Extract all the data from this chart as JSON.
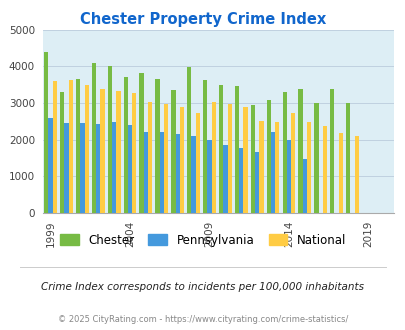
{
  "title": "Chester Property Crime Index",
  "years": [
    1999,
    2000,
    2001,
    2002,
    2003,
    2004,
    2005,
    2006,
    2007,
    2008,
    2009,
    2010,
    2011,
    2012,
    2013,
    2014,
    2015,
    2016,
    2017,
    2018,
    2019,
    2020
  ],
  "chester": [
    4380,
    3300,
    3650,
    4080,
    4020,
    3700,
    3820,
    3660,
    3350,
    3980,
    3620,
    3500,
    3460,
    2950,
    3090,
    3300,
    3380,
    3010,
    3370,
    2990,
    null,
    null
  ],
  "pennsylvania": [
    2580,
    2460,
    2450,
    2430,
    2470,
    2390,
    2200,
    2210,
    2160,
    2090,
    1990,
    1850,
    1760,
    1650,
    2210,
    1980,
    1460,
    null,
    null,
    null,
    null,
    null
  ],
  "national": [
    3600,
    3630,
    3480,
    3380,
    3340,
    3270,
    3030,
    2960,
    2880,
    2720,
    3030,
    2960,
    2880,
    2500,
    2470,
    2730,
    2490,
    2380,
    2190,
    2110,
    null,
    null
  ],
  "chester_color": "#77bb44",
  "pennsylvania_color": "#4499dd",
  "national_color": "#ffcc44",
  "bg_color": "#ddeef5",
  "ylim": [
    0,
    5000
  ],
  "yticks": [
    0,
    1000,
    2000,
    3000,
    4000,
    5000
  ],
  "xtick_positions": [
    1999,
    2004,
    2009,
    2014,
    2019
  ],
  "subtitle": "Crime Index corresponds to incidents per 100,000 inhabitants",
  "footer": "© 2025 CityRating.com - https://www.cityrating.com/crime-statistics/",
  "bar_width": 0.27,
  "grid_color": "#bbccdd",
  "figsize": [
    4.06,
    3.3
  ],
  "dpi": 100
}
